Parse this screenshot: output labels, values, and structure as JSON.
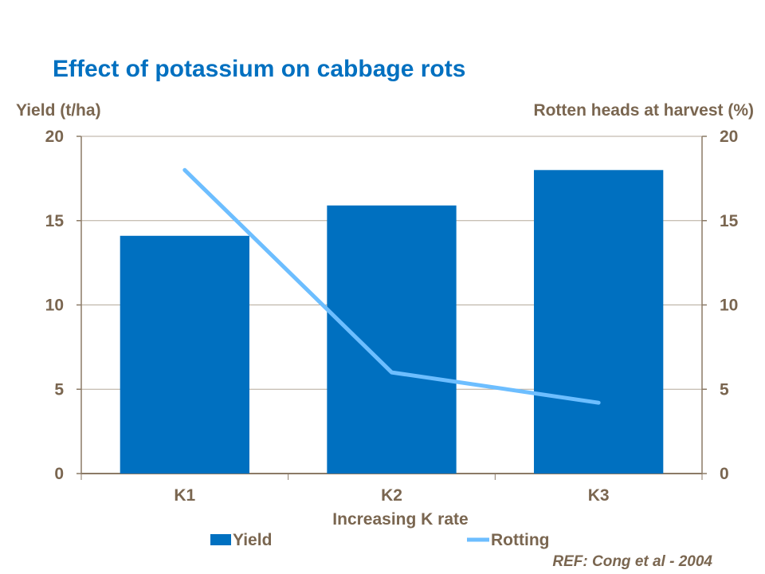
{
  "chart_data": {
    "type": "bar",
    "title": "Effect of potassium on cabbage rots",
    "xlabel": "Increasing K rate",
    "ylabel": "Yield (t/ha)",
    "y2label": "Rotten heads at harvest (%)",
    "categories": [
      "K1",
      "K2",
      "K3"
    ],
    "ylim": [
      0,
      20
    ],
    "y2lim": [
      0,
      20
    ],
    "yticks": [
      "0",
      "5",
      "10",
      "15",
      "20"
    ],
    "y2ticks": [
      "0",
      "5",
      "10",
      "15",
      "20"
    ],
    "grid": true,
    "legend_position": "bottom",
    "series": [
      {
        "name": "Yield",
        "type": "bar",
        "axis": "left",
        "color": "#0070C0",
        "values": [
          14.1,
          15.9,
          18.0
        ]
      },
      {
        "name": "Rotting",
        "type": "line",
        "axis": "right",
        "color": "#6DBEFF",
        "values": [
          18.0,
          6.0,
          4.2
        ]
      }
    ],
    "reference": "REF: Cong et al - 2004"
  }
}
